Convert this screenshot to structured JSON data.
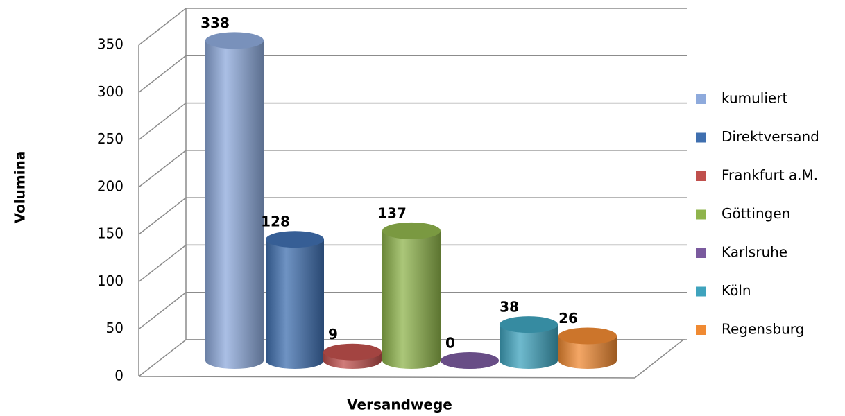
{
  "chart_data": {
    "type": "bar3d",
    "x_label": "Versandwege",
    "y_label": "Volumina",
    "categories": [
      null
    ],
    "series": [
      {
        "name": "kumuliert",
        "color": "#8eaadc",
        "values": [
          338
        ]
      },
      {
        "name": "Direktversand",
        "color": "#3f6faf",
        "values": [
          128
        ]
      },
      {
        "name": "Frankfurt a.M.",
        "color": "#c0504d",
        "values": [
          9
        ]
      },
      {
        "name": "Göttingen",
        "color": "#8fb44c",
        "values": [
          137
        ]
      },
      {
        "name": "Karlsruhe",
        "color": "#7a5a9e",
        "values": [
          0
        ]
      },
      {
        "name": "Köln",
        "color": "#3fa3bd",
        "values": [
          38
        ]
      },
      {
        "name": "Regensburg",
        "color": "#f08a33",
        "values": [
          26
        ]
      }
    ],
    "ylim": [
      0,
      350
    ],
    "yticks": [
      0,
      50,
      100,
      150,
      200,
      250,
      300,
      350
    ],
    "grid": true,
    "legend": "right"
  }
}
